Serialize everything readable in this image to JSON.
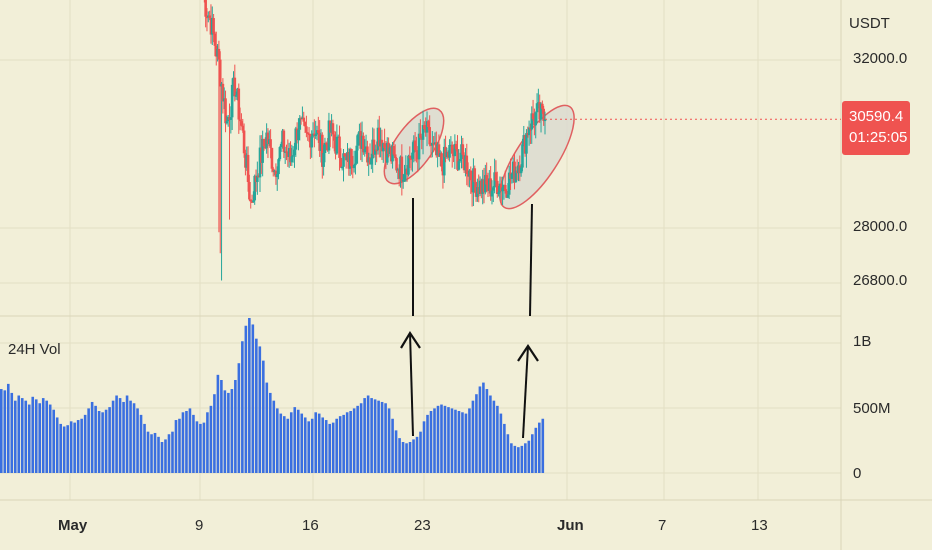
{
  "colors": {
    "background": "#f2efd8",
    "grid": "#e3dfc4",
    "up": "#26a69a",
    "down": "#ef5350",
    "volume": "#3a6fe0",
    "highlight_fill": "#dcdad0",
    "highlight_stroke": "#e06060",
    "arrow": "#111111",
    "last_price_tag": "#ef5350",
    "axis_text": "#2a2a2a"
  },
  "price_axis": {
    "currency": "USDT",
    "ticks": [
      "32000.0",
      "28000.0",
      "26800.0"
    ],
    "last_price": "30590.4",
    "countdown": "01:25:05"
  },
  "volume_axis": {
    "ticks": [
      "1B",
      "500M",
      "0"
    ]
  },
  "time_axis": {
    "ticks": [
      "May",
      "9",
      "16",
      "23",
      "Jun",
      "7",
      "13"
    ]
  },
  "chart_data": [
    {
      "type": "candlestick",
      "ylabel": "USDT",
      "ylim": [
        26500,
        33200
      ],
      "x": "4-hour candles, 9 May – 31 May",
      "close_path": [
        [
          "May 9 00:00",
          33500
        ],
        [
          "May 9 12:00",
          32900
        ],
        [
          "May 10 00:00",
          31900
        ],
        [
          "May 10 12:00",
          30500
        ],
        [
          "May 11 00:00",
          31400
        ],
        [
          "May 11 12:00",
          30200
        ],
        [
          "May 12 00:00",
          28600
        ],
        [
          "May 12 12:00",
          29500
        ],
        [
          "May 13 00:00",
          30200
        ],
        [
          "May 13 12:00",
          29400
        ],
        [
          "May 14 00:00",
          30000
        ],
        [
          "May 14 12:00",
          29600
        ],
        [
          "May 15 00:00",
          30500
        ],
        [
          "May 15 12:00",
          30100
        ],
        [
          "May 16 00:00",
          30400
        ],
        [
          "May 16 12:00",
          29800
        ],
        [
          "May 17 00:00",
          30300
        ],
        [
          "May 17 12:00",
          29900
        ],
        [
          "May 18 00:00",
          29500
        ],
        [
          "May 18 12:00",
          29800
        ],
        [
          "May 19 00:00",
          30200
        ],
        [
          "May 19 12:00",
          29700
        ],
        [
          "May 20 00:00",
          30300
        ],
        [
          "May 20 12:00",
          29900
        ],
        [
          "May 21 00:00",
          29600
        ],
        [
          "May 21 12:00",
          29400
        ],
        [
          "May 22 00:00",
          29700
        ],
        [
          "May 22 12:00",
          29900
        ],
        [
          "May 23 00:00",
          30300
        ],
        [
          "May 23 12:00",
          29800
        ],
        [
          "May 24 00:00",
          29500
        ],
        [
          "May 24 12:00",
          29800
        ],
        [
          "May 25 00:00",
          29700
        ],
        [
          "May 25 12:00",
          29600
        ],
        [
          "May 26 00:00",
          29100
        ],
        [
          "May 26 12:00",
          29000
        ],
        [
          "May 27 00:00",
          28950
        ],
        [
          "May 27 12:00",
          29100
        ],
        [
          "May 28 00:00",
          29000
        ],
        [
          "May 28 12:00",
          29300
        ],
        [
          "May 29 00:00",
          29700
        ],
        [
          "May 29 12:00",
          30500
        ],
        [
          "May 30 00:00",
          30700
        ],
        [
          "May 30 12:00",
          30590
        ]
      ],
      "last_price": 30590.4
    },
    {
      "type": "bar",
      "title": "24H Vol",
      "ylabel": "",
      "ylim": [
        0,
        1200000000
      ],
      "x_start": "May 1",
      "x_end": "May 30",
      "values_millions": [
        650,
        640,
        690,
        620,
        560,
        600,
        580,
        560,
        530,
        590,
        570,
        540,
        580,
        560,
        530,
        490,
        430,
        380,
        360,
        370,
        400,
        390,
        410,
        420,
        450,
        500,
        550,
        520,
        480,
        470,
        490,
        510,
        560,
        600,
        580,
        550,
        600,
        560,
        540,
        500,
        450,
        380,
        320,
        300,
        310,
        280,
        240,
        260,
        300,
        320,
        410,
        420,
        470,
        480,
        500,
        450,
        400,
        380,
        390,
        470,
        520,
        610,
        760,
        720,
        640,
        620,
        650,
        720,
        850,
        1020,
        1140,
        1200,
        1150,
        1040,
        980,
        870,
        700,
        620,
        560,
        500,
        460,
        440,
        420,
        470,
        510,
        490,
        460,
        430,
        400,
        420,
        470,
        460,
        430,
        410,
        380,
        390,
        420,
        440,
        450,
        470,
        480,
        500,
        520,
        540,
        580,
        600,
        580,
        570,
        560,
        550,
        540,
        500,
        420,
        330,
        270,
        240,
        230,
        240,
        260,
        280,
        320,
        400,
        450,
        480,
        500,
        520,
        530,
        520,
        510,
        500,
        490,
        480,
        470,
        460,
        500,
        560,
        610,
        670,
        700,
        650,
        600,
        560,
        520,
        460,
        380,
        300,
        230,
        210,
        200,
        210,
        230,
        250,
        300,
        350,
        390,
        420
      ]
    }
  ]
}
